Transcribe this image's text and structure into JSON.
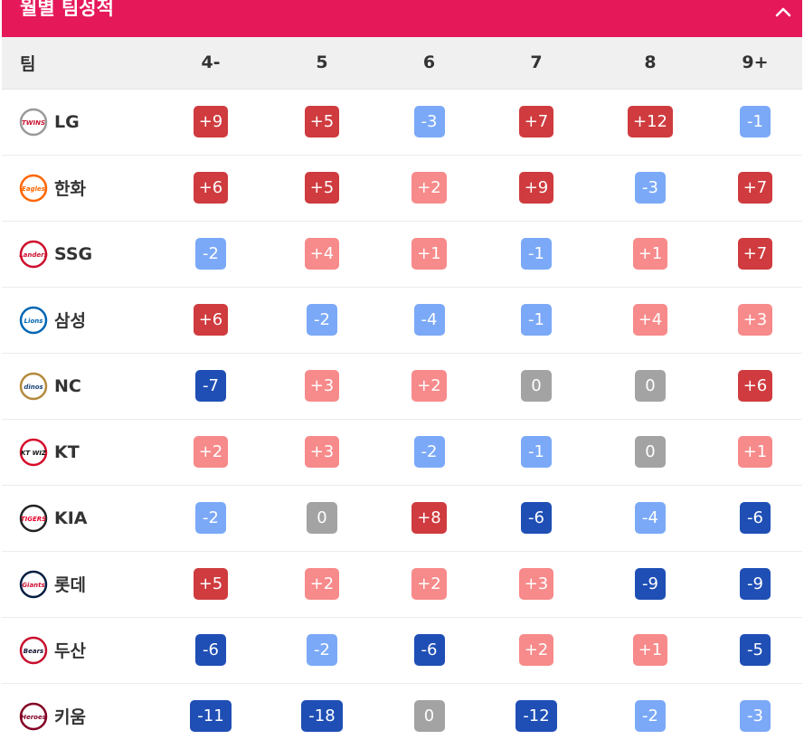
{
  "header": {
    "title": "월별 팀성적"
  },
  "columns": {
    "team": "팀",
    "months": [
      "4-",
      "5",
      "6",
      "7",
      "8",
      "9+"
    ]
  },
  "teams": [
    {
      "name": "LG",
      "logo": "twins-logo-icon",
      "logo_text": "TWINS",
      "values": [
        "+9",
        "+5",
        "-3",
        "+7",
        "+12",
        "-1"
      ]
    },
    {
      "name": "한화",
      "logo": "eagles-logo-icon",
      "logo_text": "Eagles",
      "values": [
        "+6",
        "+5",
        "+2",
        "+9",
        "-3",
        "+7"
      ]
    },
    {
      "name": "SSG",
      "logo": "landers-logo-icon",
      "logo_text": "Landers",
      "values": [
        "-2",
        "+4",
        "+1",
        "-1",
        "+1",
        "+7"
      ]
    },
    {
      "name": "삼성",
      "logo": "lions-logo-icon",
      "logo_text": "Lions",
      "values": [
        "+6",
        "-2",
        "-4",
        "-1",
        "+4",
        "+3"
      ]
    },
    {
      "name": "NC",
      "logo": "dinos-logo-icon",
      "logo_text": "dinos",
      "values": [
        "-7",
        "+3",
        "+2",
        "0",
        "0",
        "+6"
      ]
    },
    {
      "name": "KT",
      "logo": "ktwiz-logo-icon",
      "logo_text": "KT WIZ",
      "values": [
        "+2",
        "+3",
        "-2",
        "-1",
        "0",
        "+1"
      ]
    },
    {
      "name": "KIA",
      "logo": "tigers-logo-icon",
      "logo_text": "TIGERS",
      "values": [
        "-2",
        "0",
        "+8",
        "-6",
        "-4",
        "-6"
      ]
    },
    {
      "name": "롯데",
      "logo": "giants-logo-icon",
      "logo_text": "Giants",
      "values": [
        "+5",
        "+2",
        "+2",
        "+3",
        "-9",
        "-9"
      ]
    },
    {
      "name": "두산",
      "logo": "bears-logo-icon",
      "logo_text": "Bears",
      "values": [
        "-6",
        "-2",
        "-6",
        "+2",
        "+1",
        "-5"
      ]
    },
    {
      "name": "키움",
      "logo": "heroes-logo-icon",
      "logo_text": "Heroes",
      "values": [
        "-11",
        "-18",
        "0",
        "-12",
        "-2",
        "-3"
      ]
    }
  ],
  "colors": {
    "header": "#e5185a",
    "pos_strong": "#cf3b3e",
    "pos_light": "#f78a8a",
    "neg_light": "#7ba9f7",
    "neg_strong": "#1f4fb5",
    "zero": "#a3a3a3"
  }
}
